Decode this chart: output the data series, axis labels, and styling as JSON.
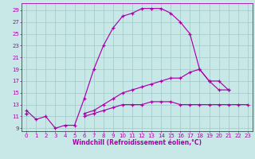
{
  "xlabel": "Windchill (Refroidissement éolien,°C)",
  "bg_color": "#c8e8e8",
  "grid_color": "#a0c8c8",
  "line_color": "#aa00aa",
  "x_hours": [
    0,
    1,
    2,
    3,
    4,
    5,
    6,
    7,
    8,
    9,
    10,
    11,
    12,
    13,
    14,
    15,
    16,
    17,
    18,
    19,
    20,
    21,
    22,
    23
  ],
  "line1": [
    12,
    10.5,
    11,
    9,
    9.5,
    9.5,
    14,
    19,
    23,
    26,
    28,
    28.5,
    29.3,
    29.3,
    29.3,
    28.5,
    27,
    25,
    19,
    17,
    15.5,
    15.5,
    null,
    null
  ],
  "line2": [
    11.5,
    null,
    null,
    null,
    null,
    null,
    11.5,
    12,
    13,
    14,
    15,
    15.5,
    16,
    16.5,
    17,
    17.5,
    17.5,
    18.5,
    19,
    17,
    17,
    15.5,
    null,
    null
  ],
  "line3": [
    11.5,
    null,
    null,
    null,
    null,
    null,
    11,
    11.5,
    12,
    12.5,
    13,
    13,
    13,
    13.5,
    13.5,
    13.5,
    13,
    13,
    13,
    13,
    13,
    13,
    13,
    13
  ],
  "ylim": [
    8.5,
    30.2
  ],
  "xlim": [
    -0.5,
    23.5
  ],
  "yticks": [
    9,
    11,
    13,
    15,
    17,
    19,
    21,
    23,
    25,
    27,
    29
  ],
  "xticks": [
    0,
    1,
    2,
    3,
    4,
    5,
    6,
    7,
    8,
    9,
    10,
    11,
    12,
    13,
    14,
    15,
    16,
    17,
    18,
    19,
    20,
    21,
    22,
    23
  ],
  "tick_fontsize": 5.0,
  "xlabel_fontsize": 5.5
}
